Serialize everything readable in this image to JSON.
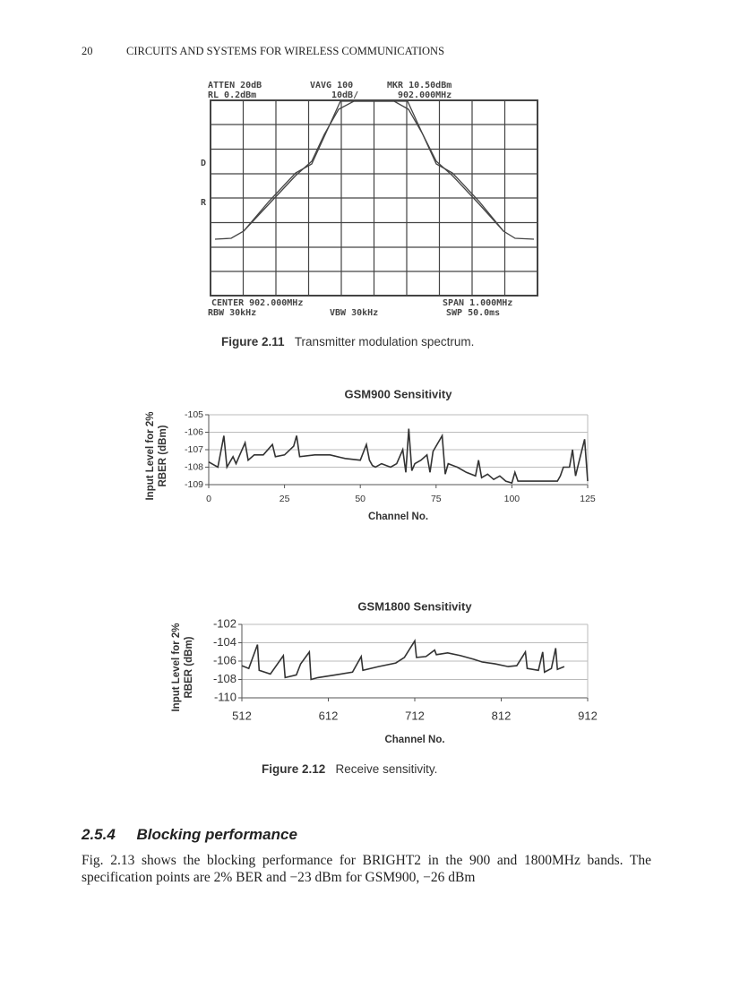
{
  "header": {
    "page_number": "20",
    "running_title": "CIRCUITS AND SYSTEMS FOR WIRELESS COMMUNICATIONS"
  },
  "spectrum": {
    "top_left_1": "ATTEN 20dB",
    "top_mid_1": "VAVG 100",
    "top_right_1": "MKR 10.50dBm",
    "top_left_2": "RL  0.2dBm",
    "top_mid_2": "10dB/",
    "top_right_2": "902.000MHz",
    "side_1": "D",
    "side_2": "R",
    "bottom_left_1": "CENTER 902.000MHz",
    "bottom_right_1": "SPAN 1.000MHz",
    "bottom_left_2": "RBW 30kHz",
    "bottom_mid_2": "VBW 30kHz",
    "bottom_right_2": "SWP 50.0ms"
  },
  "figures": [
    {
      "label": "Figure 2.11",
      "caption": "Transmitter modulation spectrum."
    },
    {
      "label": "Figure 2.12",
      "caption": "Receive sensitivity."
    }
  ],
  "chart_data": [
    {
      "type": "line",
      "title": "GSM900 Sensitivity",
      "x_label": "Channel No.",
      "y_label": "Input Level for 2% RBER (dBm)",
      "color": "#333333",
      "grid": true,
      "xlim": [
        0,
        125
      ],
      "xticks": [
        0,
        25,
        50,
        75,
        100,
        125
      ],
      "ylim": [
        -109,
        -105
      ],
      "yticks": [
        -105,
        -106,
        -107,
        -108,
        -109
      ],
      "x": [
        0,
        3,
        5,
        6,
        8,
        9,
        10,
        12,
        13,
        15,
        18,
        21,
        22,
        25,
        28,
        29,
        30,
        35,
        40,
        45,
        50,
        52,
        53,
        54,
        55,
        57,
        60,
        62,
        64,
        65,
        66,
        67,
        68,
        70,
        72,
        73,
        74,
        77,
        78,
        79,
        82,
        85,
        88,
        89,
        90,
        92,
        94,
        96,
        98,
        100,
        101,
        102,
        106,
        110,
        115,
        116,
        117,
        119,
        120,
        121,
        122,
        124,
        125
      ],
      "values": [
        -107.7,
        -108,
        -106.2,
        -108,
        -107.4,
        -107.8,
        -107.4,
        -106.6,
        -107.6,
        -107.3,
        -107.3,
        -106.7,
        -107.4,
        -107.3,
        -106.8,
        -106.2,
        -107.4,
        -107.3,
        -107.3,
        -107.5,
        -107.6,
        -106.7,
        -107.6,
        -107.9,
        -108,
        -107.8,
        -108,
        -107.8,
        -107,
        -108.3,
        -105.8,
        -108.2,
        -107.8,
        -107.6,
        -107.3,
        -108.3,
        -107.1,
        -106.2,
        -108.4,
        -107.8,
        -108,
        -108.3,
        -108.5,
        -107.6,
        -108.6,
        -108.4,
        -108.7,
        -108.5,
        -108.8,
        -108.9,
        -108.3,
        -108.8,
        -108.8,
        -108.8,
        -108.8,
        -108.5,
        -108,
        -108,
        -107,
        -108.5,
        -107.8,
        -106.4,
        -108.8
      ]
    },
    {
      "type": "line",
      "title": "GSM1800 Sensitivity",
      "x_label": "Channel No.",
      "y_label": "Input Level for 2% RBER (dBm)",
      "color": "#333333",
      "grid": true,
      "xlim": [
        512,
        912
      ],
      "xticks": [
        512,
        612,
        712,
        812,
        912
      ],
      "ylim": [
        -110,
        -102
      ],
      "yticks": [
        -102,
        -104,
        -106,
        -108,
        -110
      ],
      "x": [
        512,
        520,
        530,
        532,
        545,
        560,
        562,
        575,
        580,
        590,
        592,
        600,
        620,
        640,
        650,
        652,
        670,
        690,
        700,
        712,
        714,
        725,
        735,
        737,
        750,
        765,
        780,
        790,
        805,
        820,
        830,
        840,
        842,
        855,
        860,
        862,
        870,
        875,
        877,
        885
      ],
      "values": [
        -106.5,
        -106.8,
        -104.2,
        -107,
        -107.4,
        -105.4,
        -107.8,
        -107.5,
        -106.3,
        -105,
        -108,
        -107.8,
        -107.5,
        -107.2,
        -105.5,
        -107,
        -106.6,
        -106.2,
        -105.6,
        -103.8,
        -105.6,
        -105.5,
        -104.8,
        -105.3,
        -105.1,
        -105.4,
        -105.8,
        -106.1,
        -106.3,
        -106.6,
        -106.5,
        -105,
        -106.8,
        -107,
        -105,
        -107.2,
        -106.8,
        -104.6,
        -106.9,
        -106.6
      ]
    }
  ],
  "section": {
    "number": "2.5.4",
    "title": "Blocking performance"
  },
  "body": [
    "Fig. 2.13 shows the blocking performance for BRIGHT2 in the 900 and 1800MHz bands. The specification points are 2% BER and −23 dBm for GSM900, −26 dBm"
  ]
}
